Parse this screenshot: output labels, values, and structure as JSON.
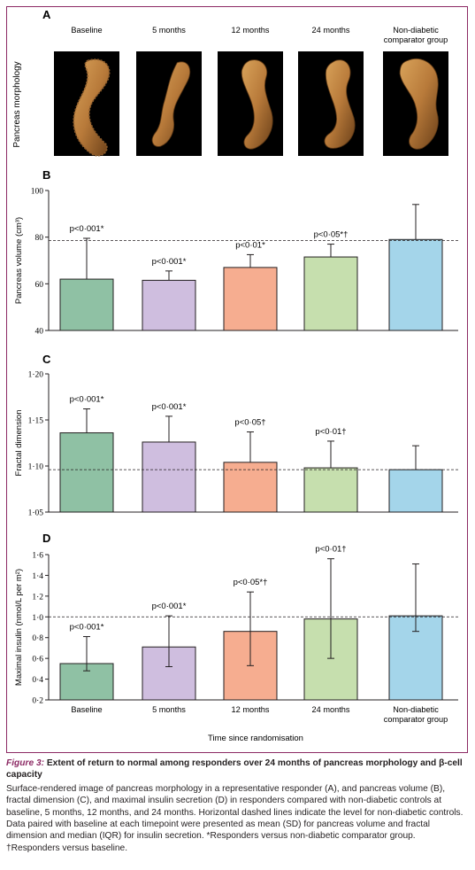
{
  "panel_a": {
    "letter": "A",
    "row_label": "Pancreas morphology",
    "columns": [
      "Baseline",
      "5 months",
      "12 months",
      "24 months",
      "Non-diabetic\ncomparator group"
    ]
  },
  "chart_data": [
    {
      "type": "bar",
      "panel": "B",
      "categories": [
        "Baseline",
        "5 months",
        "12 months",
        "24 months",
        "Non-diabetic comparator group"
      ],
      "values": [
        62,
        61.5,
        67,
        71.5,
        79
      ],
      "error_upper": [
        79.5,
        65.5,
        72.5,
        77,
        94
      ],
      "error_lower": [
        null,
        null,
        null,
        null,
        null
      ],
      "annotations": [
        "p<0·001*",
        "p<0·001*",
        "p<0·01*",
        "p<0·05*†",
        ""
      ],
      "ylabel": "Pancreas volume (cm³)",
      "ylim": [
        40,
        100
      ],
      "yticks": [
        "40",
        "60",
        "80",
        "100"
      ],
      "reference_line": 78.5,
      "colors": [
        "#8fc1a4",
        "#cfbedf",
        "#f6ad90",
        "#c6dfae",
        "#a4d5ea"
      ]
    },
    {
      "type": "bar",
      "panel": "C",
      "categories": [
        "Baseline",
        "5 months",
        "12 months",
        "24 months",
        "Non-diabetic comparator group"
      ],
      "values": [
        1.136,
        1.126,
        1.104,
        1.098,
        1.096
      ],
      "error_upper": [
        1.162,
        1.154,
        1.137,
        1.127,
        1.122
      ],
      "error_lower": [
        null,
        null,
        null,
        null,
        null
      ],
      "annotations": [
        "p<0·001*",
        "p<0·001*",
        "p<0·05†",
        "p<0·01†",
        ""
      ],
      "ylabel": "Fractal dimension",
      "ylim": [
        1.05,
        1.2
      ],
      "yticks": [
        "1·05",
        "1·10",
        "1·15",
        "1·20"
      ],
      "reference_line": 1.096,
      "colors": [
        "#8fc1a4",
        "#cfbedf",
        "#f6ad90",
        "#c6dfae",
        "#a4d5ea"
      ]
    },
    {
      "type": "bar",
      "panel": "D",
      "categories": [
        "Baseline",
        "5 months",
        "12 months",
        "24 months",
        "Non-diabetic comparator group"
      ],
      "values": [
        0.55,
        0.71,
        0.86,
        0.98,
        1.01
      ],
      "error_upper": [
        0.81,
        1.01,
        1.24,
        1.56,
        1.51
      ],
      "error_lower": [
        0.48,
        0.52,
        0.53,
        0.6,
        0.86
      ],
      "annotations": [
        "p<0·001*",
        "p<0·001*",
        "p<0·05*†",
        "p<0·01†",
        ""
      ],
      "ylabel": "Maximal insulin (nmol/L per m²)",
      "ylim": [
        0.2,
        1.6
      ],
      "yticks": [
        "0·2",
        "0·4",
        "0·6",
        "0·8",
        "1·0",
        "1·2",
        "1·4",
        "1·6"
      ],
      "reference_line": 1.0,
      "xticks": [
        "Baseline",
        "5 months",
        "12 months",
        "24 months",
        "Non-diabetic\ncomparator group"
      ],
      "xlabel": "Time since randomisation",
      "colors": [
        "#8fc1a4",
        "#cfbedf",
        "#f6ad90",
        "#c6dfae",
        "#a4d5ea"
      ]
    }
  ],
  "caption": {
    "label": "Figure 3:",
    "title": " Extent of return to normal among responders over 24 months of pancreas morphology and β-cell capacity",
    "body": "Surface-rendered image of pancreas morphology in a representative responder (A), and pancreas volume (B), fractal dimension (C), and maximal insulin secretion (D) in responders compared with non-diabetic controls at baseline, 5 months, 12 months, and 24 months. Horizontal dashed lines indicate the level for non-diabetic controls. Data paired with baseline at each timepoint were presented as mean (SD) for pancreas volume and fractal dimension and median (IQR) for insulin secretion. *Responders versus non-diabetic comparator group. †Responders versus baseline."
  }
}
